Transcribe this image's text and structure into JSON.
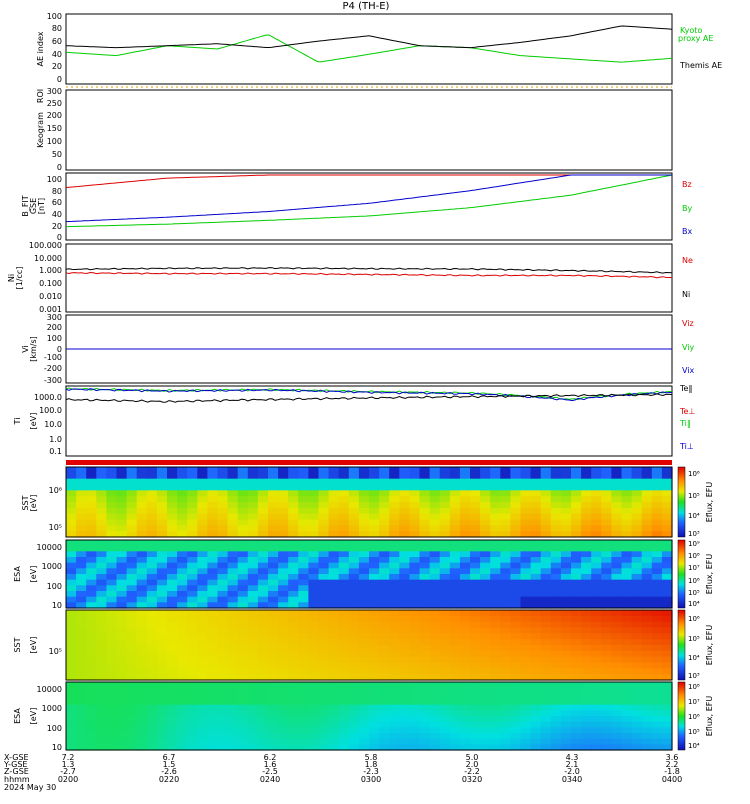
{
  "title": "P4 (TH-E)",
  "panels": [
    {
      "id": "ae",
      "ylabel": [
        "AE index"
      ],
      "ticks": [
        "0",
        "20",
        "40",
        "60",
        "80",
        "100"
      ],
      "right_labels": [
        {
          "text": "Kyoto",
          "color": "#00cc00"
        },
        {
          "text": "proxy AE",
          "color": "#00cc00"
        },
        {
          "text": "Themis AE",
          "color": "#000000"
        }
      ]
    },
    {
      "id": "roi",
      "ylabel": [
        "ROI"
      ],
      "ticks": [],
      "right_labels": []
    },
    {
      "id": "keogram",
      "ylabel": [
        "Keogram"
      ],
      "ticks": [
        "0",
        "50",
        "100",
        "150",
        "200",
        "250",
        "300"
      ],
      "right_labels": []
    },
    {
      "id": "bfield",
      "ylabel": [
        "B_FIT",
        "GSE",
        "[nT]"
      ],
      "ticks": [
        "0",
        "20",
        "40",
        "60",
        "80",
        "100"
      ],
      "right_labels": [
        {
          "text": "Bz",
          "color": "#dd0000"
        },
        {
          "text": "By",
          "color": "#00cc00"
        },
        {
          "text": "Bx",
          "color": "#0000cc"
        }
      ]
    },
    {
      "id": "density",
      "ylabel": [
        "Ni",
        "[1/cc]"
      ],
      "ticks": [
        "0.001",
        "0.010",
        "0.100",
        "1.000",
        "10.000",
        "100.000"
      ],
      "right_labels": [
        {
          "text": "Ne",
          "color": "#dd0000"
        },
        {
          "text": "Ni",
          "color": "#000000"
        }
      ]
    },
    {
      "id": "velocity",
      "ylabel": [
        "Vi",
        "[km/s]"
      ],
      "ticks": [
        "-300",
        "-200",
        "-100",
        "0",
        "100",
        "200",
        "300"
      ],
      "right_labels": [
        {
          "text": "Viz",
          "color": "#dd0000"
        },
        {
          "text": "Viy",
          "color": "#00cc00"
        },
        {
          "text": "Vix",
          "color": "#0000cc"
        }
      ]
    },
    {
      "id": "temperature",
      "ylabel": [
        "Ti",
        "[eV]"
      ],
      "ticks": [
        "0.1",
        "1.0",
        "10.0",
        "100.0",
        "1000.0"
      ],
      "right_labels": [
        {
          "text": "Te‖",
          "color": "#000000"
        },
        {
          "text": "Te⊥",
          "color": "#dd0000"
        },
        {
          "text": "Ti‖",
          "color": "#00cc00"
        },
        {
          "text": "Ti⊥",
          "color": "#0000cc"
        }
      ]
    },
    {
      "id": "sst_e",
      "ylabel": [
        "SST",
        "[eV]"
      ],
      "ticks": [
        "10⁵",
        "10⁶"
      ],
      "cbar_label": "Eflux, EFU",
      "cbar_ticks": [
        "10³",
        "10⁴",
        "10⁵",
        "10⁶"
      ]
    },
    {
      "id": "esa_e",
      "ylabel": [
        "ESA",
        "[eV]"
      ],
      "ticks": [
        "10",
        "100",
        "1000",
        "10000"
      ],
      "cbar_label": "Eflux, EFU",
      "cbar_ticks": [
        "10⁴",
        "10⁵",
        "10⁶",
        "10⁷",
        "10⁸",
        "10⁹"
      ]
    },
    {
      "id": "sst_i",
      "ylabel": [
        "SST",
        "[eV]"
      ],
      "ticks": [
        "10⁵"
      ],
      "cbar_label": "Eflux, EFU",
      "cbar_ticks": [
        "10³",
        "10⁴",
        "10⁵",
        "10⁶"
      ]
    },
    {
      "id": "esa_i",
      "ylabel": [
        "ESA",
        "[eV]"
      ],
      "ticks": [
        "10",
        "100",
        "1000",
        "10000"
      ],
      "cbar_label": "Eflux, EFU",
      "cbar_ticks": [
        "10⁴",
        "10⁵",
        "10⁶",
        "10⁷",
        "10⁸"
      ]
    }
  ],
  "footer": {
    "row_labels": [
      "X-GSE",
      "Y-GSE",
      "Z-GSE",
      "hhmm",
      "2024 May 30"
    ],
    "columns": [
      {
        "values": [
          "7.2",
          "1.3",
          "-2.7",
          "0200"
        ]
      },
      {
        "values": [
          "6.7",
          "1.5",
          "-2.6",
          "0220"
        ]
      },
      {
        "values": [
          "6.2",
          "1.6",
          "-2.5",
          "0240"
        ]
      },
      {
        "values": [
          "5.8",
          "1.8",
          "-2.3",
          "0300"
        ]
      },
      {
        "values": [
          "5.0",
          "2.0",
          "-2.2",
          "0320"
        ]
      },
      {
        "values": [
          "4.3",
          "2.1",
          "-2.0",
          "0340"
        ]
      },
      {
        "values": [
          "3.6",
          "2.2",
          "-1.8",
          "0400"
        ]
      }
    ]
  },
  "chart_data": [
    {
      "type": "line",
      "title": "P4 (TH-E)",
      "ylabel": "AE index",
      "ylim": [
        0,
        100
      ],
      "x": [
        "0200",
        "0210",
        "0220",
        "0230",
        "0240",
        "0250",
        "0300",
        "0310",
        "0320",
        "0330",
        "0340",
        "0350",
        "0400"
      ],
      "series": [
        {
          "name": "Kyoto proxy AE",
          "color": "#00cc00",
          "values": [
            45,
            40,
            55,
            50,
            72,
            30,
            42,
            55,
            52,
            40,
            35,
            30,
            36
          ]
        },
        {
          "name": "Themis AE",
          "color": "#000000",
          "values": [
            55,
            52,
            55,
            58,
            52,
            62,
            70,
            55,
            52,
            60,
            70,
            85,
            80
          ]
        }
      ]
    },
    {
      "type": "line",
      "ylabel": "B_FIT GSE [nT]",
      "ylim": [
        0,
        100
      ],
      "x": [
        "0200",
        "0220",
        "0240",
        "0300",
        "0320",
        "0340",
        "0400"
      ],
      "series": [
        {
          "name": "Bz",
          "color": "#dd0000",
          "values": [
            80,
            95,
            100,
            100,
            100,
            100,
            100
          ]
        },
        {
          "name": "By",
          "color": "#00cc00",
          "values": [
            18,
            22,
            28,
            35,
            48,
            68,
            100
          ]
        },
        {
          "name": "Bx",
          "color": "#0000cc",
          "values": [
            26,
            33,
            42,
            55,
            75,
            100,
            100
          ]
        }
      ]
    },
    {
      "type": "line",
      "ylabel": "Ni [1/cc]",
      "ylim": [
        0.001,
        100
      ],
      "series": [
        {
          "name": "Ni",
          "color": "#000000",
          "values": [
            1.5,
            1.8,
            1.9,
            1.7,
            1.6,
            1.2,
            0.8
          ]
        },
        {
          "name": "Ne",
          "color": "#dd0000",
          "values": [
            0.8,
            0.7,
            0.7,
            0.6,
            0.5,
            0.5,
            0.35
          ]
        }
      ]
    },
    {
      "type": "line",
      "ylabel": "Vi [km/s]",
      "ylim": [
        -300,
        300
      ],
      "series": [
        {
          "name": "Viz",
          "color": "#dd0000",
          "values": [
            0,
            0,
            0,
            0,
            0,
            0,
            0
          ]
        },
        {
          "name": "Viy",
          "color": "#00cc00",
          "values": [
            0,
            0,
            0,
            0,
            0,
            0,
            0
          ]
        },
        {
          "name": "Vix",
          "color": "#0000cc",
          "values": [
            0,
            0,
            0,
            0,
            0,
            0,
            0
          ]
        }
      ]
    },
    {
      "type": "line",
      "ylabel": "Ti [eV]",
      "ylim": [
        0.1,
        1000
      ],
      "series": [
        {
          "name": "Ti‖",
          "color": "#00cc00",
          "values": [
            900,
            700,
            800,
            600,
            500,
            200,
            600
          ]
        },
        {
          "name": "Ti⊥",
          "color": "#0000cc",
          "values": [
            850,
            650,
            750,
            550,
            450,
            180,
            550
          ]
        },
        {
          "name": "Te‖",
          "color": "#000000",
          "values": [
            200,
            150,
            200,
            250,
            300,
            350,
            400
          ]
        }
      ]
    },
    {
      "type": "heatmap",
      "ylabel": "SST [eV]"
    },
    {
      "type": "heatmap",
      "ylabel": "ESA [eV]"
    },
    {
      "type": "heatmap",
      "ylabel": "SST [eV]"
    },
    {
      "type": "heatmap",
      "ylabel": "ESA [eV]"
    }
  ]
}
